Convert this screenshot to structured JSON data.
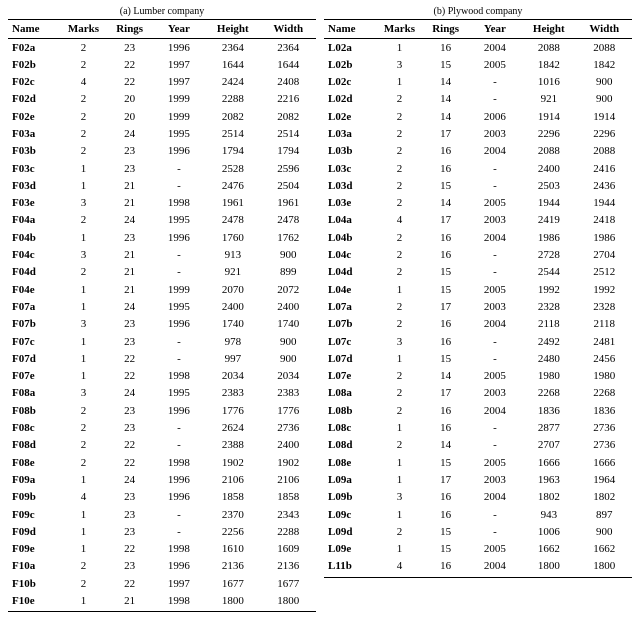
{
  "columns": [
    "Name",
    "Marks",
    "Rings",
    "Year",
    "Height",
    "Width"
  ],
  "left": {
    "caption": "(a) Lumber company",
    "rows": [
      [
        "F02a",
        "2",
        "23",
        "1996",
        "2364",
        "2364"
      ],
      [
        "F02b",
        "2",
        "22",
        "1997",
        "1644",
        "1644"
      ],
      [
        "F02c",
        "4",
        "22",
        "1997",
        "2424",
        "2408"
      ],
      [
        "F02d",
        "2",
        "20",
        "1999",
        "2288",
        "2216"
      ],
      [
        "F02e",
        "2",
        "20",
        "1999",
        "2082",
        "2082"
      ],
      [
        "F03a",
        "2",
        "24",
        "1995",
        "2514",
        "2514"
      ],
      [
        "F03b",
        "2",
        "23",
        "1996",
        "1794",
        "1794"
      ],
      [
        "F03c",
        "1",
        "23",
        "-",
        "2528",
        "2596"
      ],
      [
        "F03d",
        "1",
        "21",
        "-",
        "2476",
        "2504"
      ],
      [
        "F03e",
        "3",
        "21",
        "1998",
        "1961",
        "1961"
      ],
      [
        "F04a",
        "2",
        "24",
        "1995",
        "2478",
        "2478"
      ],
      [
        "F04b",
        "1",
        "23",
        "1996",
        "1760",
        "1762"
      ],
      [
        "F04c",
        "3",
        "21",
        "-",
        "913",
        "900"
      ],
      [
        "F04d",
        "2",
        "21",
        "-",
        "921",
        "899"
      ],
      [
        "F04e",
        "1",
        "21",
        "1999",
        "2070",
        "2072"
      ],
      [
        "F07a",
        "1",
        "24",
        "1995",
        "2400",
        "2400"
      ],
      [
        "F07b",
        "3",
        "23",
        "1996",
        "1740",
        "1740"
      ],
      [
        "F07c",
        "1",
        "23",
        "-",
        "978",
        "900"
      ],
      [
        "F07d",
        "1",
        "22",
        "-",
        "997",
        "900"
      ],
      [
        "F07e",
        "1",
        "22",
        "1998",
        "2034",
        "2034"
      ],
      [
        "F08a",
        "3",
        "24",
        "1995",
        "2383",
        "2383"
      ],
      [
        "F08b",
        "2",
        "23",
        "1996",
        "1776",
        "1776"
      ],
      [
        "F08c",
        "2",
        "23",
        "-",
        "2624",
        "2736"
      ],
      [
        "F08d",
        "2",
        "22",
        "-",
        "2388",
        "2400"
      ],
      [
        "F08e",
        "2",
        "22",
        "1998",
        "1902",
        "1902"
      ],
      [
        "F09a",
        "1",
        "24",
        "1996",
        "2106",
        "2106"
      ],
      [
        "F09b",
        "4",
        "23",
        "1996",
        "1858",
        "1858"
      ],
      [
        "F09c",
        "1",
        "23",
        "-",
        "2370",
        "2343"
      ],
      [
        "F09d",
        "1",
        "23",
        "-",
        "2256",
        "2288"
      ],
      [
        "F09e",
        "1",
        "22",
        "1998",
        "1610",
        "1609"
      ],
      [
        "F10a",
        "2",
        "23",
        "1996",
        "2136",
        "2136"
      ],
      [
        "F10b",
        "2",
        "22",
        "1997",
        "1677",
        "1677"
      ],
      [
        "F10e",
        "1",
        "21",
        "1998",
        "1800",
        "1800"
      ]
    ]
  },
  "right": {
    "caption": "(b) Plywood company",
    "rows": [
      [
        "L02a",
        "1",
        "16",
        "2004",
        "2088",
        "2088"
      ],
      [
        "L02b",
        "3",
        "15",
        "2005",
        "1842",
        "1842"
      ],
      [
        "L02c",
        "1",
        "14",
        "-",
        "1016",
        "900"
      ],
      [
        "L02d",
        "2",
        "14",
        "-",
        "921",
        "900"
      ],
      [
        "L02e",
        "2",
        "14",
        "2006",
        "1914",
        "1914"
      ],
      [
        "L03a",
        "2",
        "17",
        "2003",
        "2296",
        "2296"
      ],
      [
        "L03b",
        "2",
        "16",
        "2004",
        "2088",
        "2088"
      ],
      [
        "L03c",
        "2",
        "16",
        "-",
        "2400",
        "2416"
      ],
      [
        "L03d",
        "2",
        "15",
        "-",
        "2503",
        "2436"
      ],
      [
        "L03e",
        "2",
        "14",
        "2005",
        "1944",
        "1944"
      ],
      [
        "L04a",
        "4",
        "17",
        "2003",
        "2419",
        "2418"
      ],
      [
        "L04b",
        "2",
        "16",
        "2004",
        "1986",
        "1986"
      ],
      [
        "L04c",
        "2",
        "16",
        "-",
        "2728",
        "2704"
      ],
      [
        "L04d",
        "2",
        "15",
        "-",
        "2544",
        "2512"
      ],
      [
        "L04e",
        "1",
        "15",
        "2005",
        "1992",
        "1992"
      ],
      [
        "L07a",
        "2",
        "17",
        "2003",
        "2328",
        "2328"
      ],
      [
        "L07b",
        "2",
        "16",
        "2004",
        "2118",
        "2118"
      ],
      [
        "L07c",
        "3",
        "16",
        "-",
        "2492",
        "2481"
      ],
      [
        "L07d",
        "1",
        "15",
        "-",
        "2480",
        "2456"
      ],
      [
        "L07e",
        "2",
        "14",
        "2005",
        "1980",
        "1980"
      ],
      [
        "L08a",
        "2",
        "17",
        "2003",
        "2268",
        "2268"
      ],
      [
        "L08b",
        "2",
        "16",
        "2004",
        "1836",
        "1836"
      ],
      [
        "L08c",
        "1",
        "16",
        "-",
        "2877",
        "2736"
      ],
      [
        "L08d",
        "2",
        "14",
        "-",
        "2707",
        "2736"
      ],
      [
        "L08e",
        "1",
        "15",
        "2005",
        "1666",
        "1666"
      ],
      [
        "L09a",
        "1",
        "17",
        "2003",
        "1963",
        "1964"
      ],
      [
        "L09b",
        "3",
        "16",
        "2004",
        "1802",
        "1802"
      ],
      [
        "L09c",
        "1",
        "16",
        "-",
        "943",
        "897"
      ],
      [
        "L09d",
        "2",
        "15",
        "-",
        "1006",
        "900"
      ],
      [
        "L09e",
        "1",
        "15",
        "2005",
        "1662",
        "1662"
      ],
      [
        "L11b",
        "4",
        "16",
        "2004",
        "1800",
        "1800"
      ]
    ]
  }
}
